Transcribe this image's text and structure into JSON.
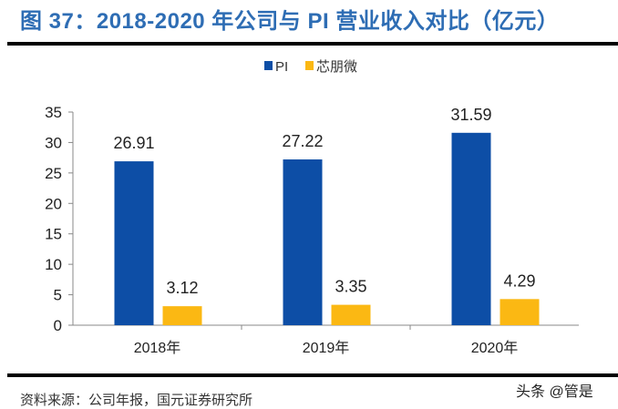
{
  "title": "图 37：2018-2020 年公司与 PI 营业收入对比（亿元）",
  "source": "资料来源：公司年报，国元证券研究所",
  "watermark": "头条 @管是",
  "chart_data": {
    "type": "bar",
    "title": "",
    "categories": [
      "2018年",
      "2019年",
      "2020年"
    ],
    "series": [
      {
        "name": "PI",
        "values": [
          26.91,
          27.22,
          31.59
        ],
        "color": "#0d4ea6"
      },
      {
        "name": "芯朋微",
        "values": [
          3.12,
          3.35,
          4.29
        ],
        "color": "#fbb813"
      }
    ],
    "ylim": [
      0,
      35
    ],
    "yticks": [
      0,
      5,
      10,
      15,
      20,
      25,
      30,
      35
    ],
    "grid": false,
    "legend": "top-center",
    "data_labels": true
  }
}
